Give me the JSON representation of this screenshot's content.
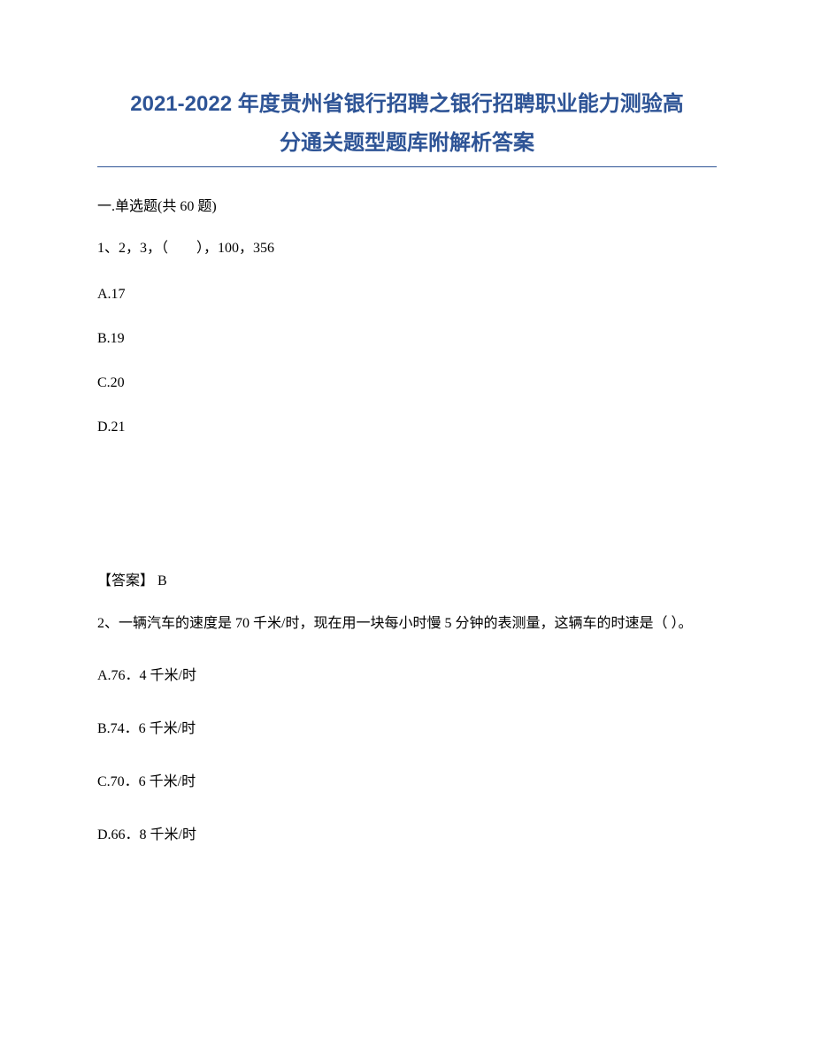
{
  "title_line1": "2021-2022 年度贵州省银行招聘之银行招聘职业能力测验高",
  "title_line2": "分通关题型题库附解析答案",
  "section_header": "一.单选题(共 60 题)",
  "q1": {
    "text": "1、2，3，（　　），100，356",
    "options": {
      "a": "A.17",
      "b": "B.19",
      "c": "C.20",
      "d": "D.21"
    },
    "answer": "【答案】 B"
  },
  "q2": {
    "text": "2、一辆汽车的速度是 70 千米/时，现在用一块每小时慢 5 分钟的表测量，这辆车的时速是（ ）。",
    "options": {
      "a": "A.76．4 千米/时",
      "b": "B.74．6 千米/时",
      "c": "C.70．6 千米/时",
      "d": "D.66．8 千米/时"
    }
  },
  "colors": {
    "title_color": "#2e5496",
    "text_color": "#000000",
    "background_color": "#ffffff"
  },
  "typography": {
    "title_fontsize": 24,
    "body_fontsize": 16
  }
}
